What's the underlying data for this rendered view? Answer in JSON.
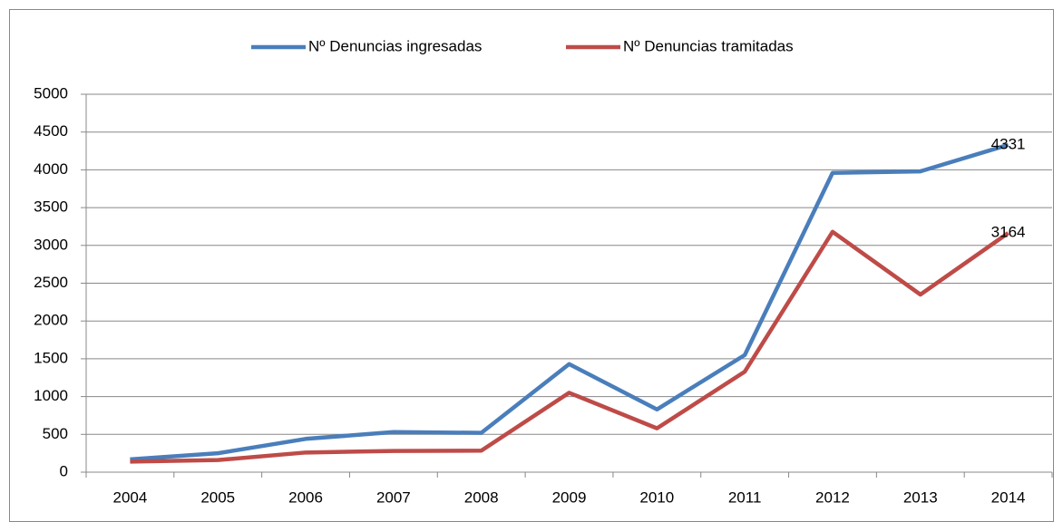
{
  "chart_data": {
    "type": "line",
    "categories": [
      "2004",
      "2005",
      "2006",
      "2007",
      "2008",
      "2009",
      "2010",
      "2011",
      "2012",
      "2013",
      "2014"
    ],
    "series": [
      {
        "name": "Nº Denuncias ingresadas",
        "color": "#4a7ebb",
        "values": [
          170,
          250,
          440,
          530,
          520,
          1430,
          830,
          1550,
          3960,
          3980,
          4331
        ]
      },
      {
        "name": "Nº Denuncias tramitadas",
        "color": "#be4b48",
        "values": [
          140,
          160,
          260,
          280,
          285,
          1050,
          580,
          1330,
          3180,
          2350,
          3164
        ]
      }
    ],
    "ylim": [
      0,
      5000
    ],
    "yticks": [
      0,
      500,
      1000,
      1500,
      2000,
      2500,
      3000,
      3500,
      4000,
      4500,
      5000
    ],
    "grid": true,
    "legend": "top",
    "data_labels": "last"
  }
}
